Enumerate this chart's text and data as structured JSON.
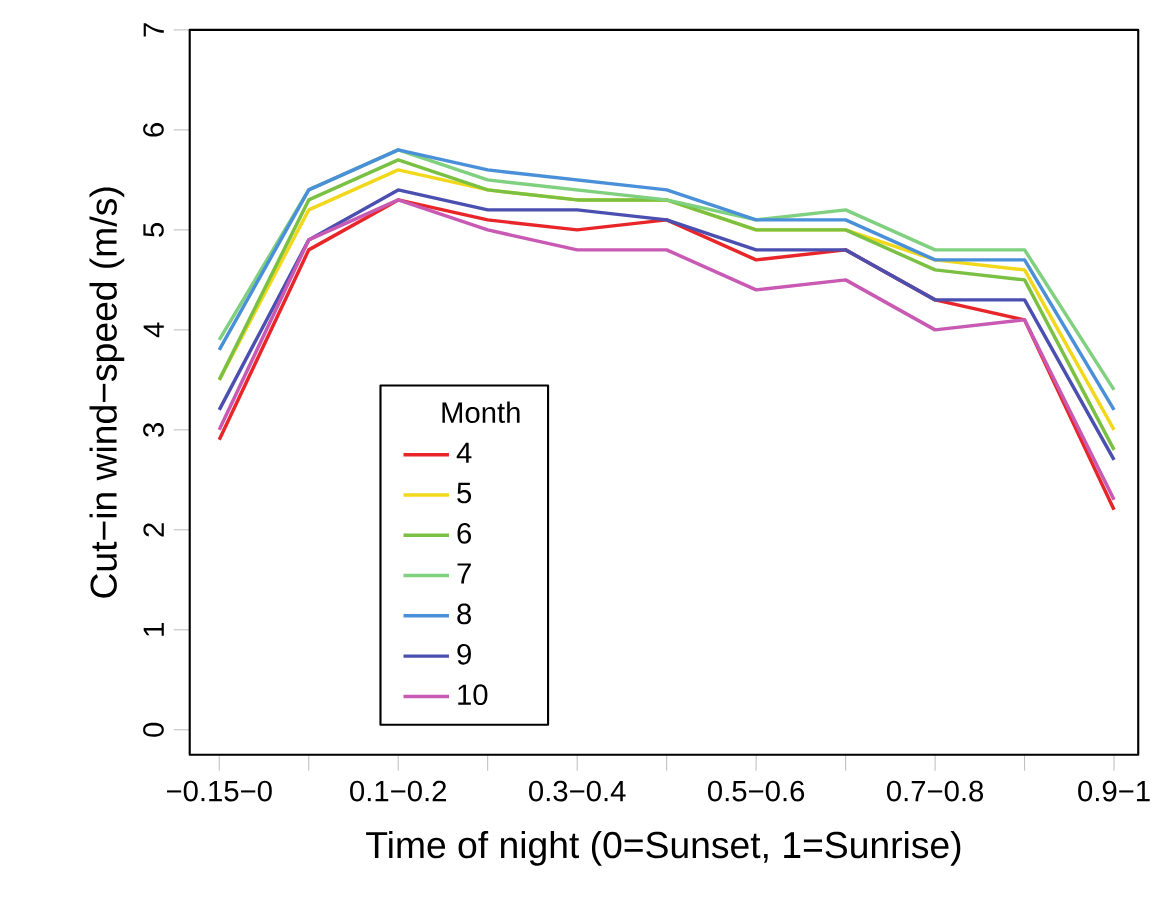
{
  "chart_data": {
    "type": "line",
    "xlabel": "Time of night (0=Sunset, 1=Sunrise)",
    "ylabel": "Cut−in wind−speed (m/s)",
    "legend_title": "Month",
    "categories": [
      "−0.15−0",
      null,
      "0.1−0.2",
      null,
      "0.3−0.4",
      null,
      "0.5−0.6",
      null,
      "0.7−0.8",
      null,
      "0.9−1"
    ],
    "ylim": [
      -0.25,
      7
    ],
    "yticks": [
      0,
      1,
      2,
      3,
      4,
      5,
      6,
      7
    ],
    "grid": false,
    "legend": "bottom left",
    "marker": "none",
    "line_style": "solid",
    "series": [
      {
        "name": "4",
        "color": "#e8262a",
        "values": [
          2.9,
          4.8,
          5.3,
          5.1,
          5.0,
          5.1,
          4.7,
          4.8,
          4.3,
          4.1,
          2.2
        ]
      },
      {
        "name": "5",
        "color": "#f2d81a",
        "values": [
          3.5,
          5.2,
          5.6,
          5.4,
          5.3,
          5.3,
          5.0,
          5.0,
          4.7,
          4.6,
          3.0
        ]
      },
      {
        "name": "6",
        "color": "#7ac143",
        "values": [
          3.5,
          5.3,
          5.7,
          5.4,
          5.3,
          5.3,
          5.0,
          5.0,
          4.6,
          4.5,
          2.8
        ]
      },
      {
        "name": "7",
        "color": "#7fd07f",
        "values": [
          3.9,
          5.4,
          5.8,
          5.5,
          5.4,
          5.3,
          5.1,
          5.2,
          4.8,
          4.8,
          3.4
        ]
      },
      {
        "name": "8",
        "color": "#4a90d9",
        "values": [
          3.8,
          5.4,
          5.8,
          5.6,
          5.5,
          5.4,
          5.1,
          5.1,
          4.7,
          4.7,
          3.2
        ]
      },
      {
        "name": "9",
        "color": "#4b4fb0",
        "values": [
          3.2,
          4.9,
          5.4,
          5.2,
          5.2,
          5.1,
          4.8,
          4.8,
          4.3,
          4.3,
          2.7
        ]
      },
      {
        "name": "10",
        "color": "#c85ab4",
        "values": [
          3.0,
          4.9,
          5.3,
          5.0,
          4.8,
          4.8,
          4.4,
          4.5,
          4.0,
          4.1,
          2.3
        ]
      }
    ]
  }
}
